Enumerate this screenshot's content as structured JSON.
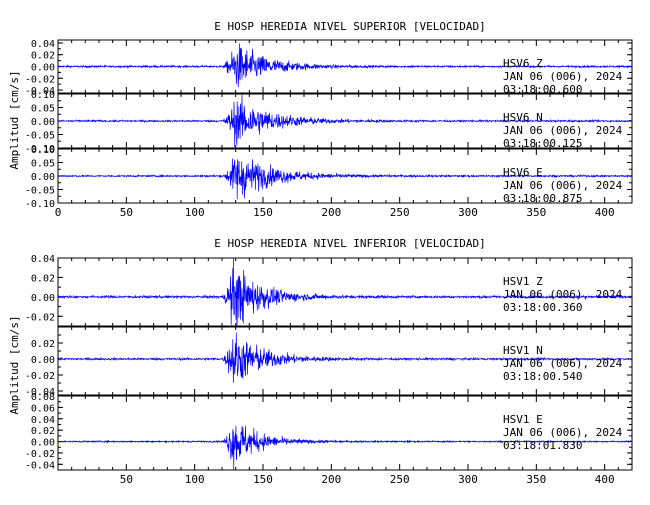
{
  "colors": {
    "trace": "#0000ff",
    "axis": "#000000",
    "background": "#ffffff"
  },
  "chart_data": [
    {
      "type": "line",
      "title": "E HOSP HEREDIA NIVEL SUPERIOR [VELOCIDAD]",
      "ylabel": "Amplitud [cm/s]",
      "xlabel": "",
      "xlim": [
        0,
        420
      ],
      "x_ticks": [
        0,
        50,
        100,
        150,
        200,
        250,
        300,
        350,
        400
      ],
      "shared_x": true,
      "panels": [
        {
          "name": "HSV6 Z",
          "info": [
            "HSV6   Z",
            "JAN 06 (006), 2024",
            "03:18:00.600"
          ],
          "ylim": [
            -0.045,
            0.045
          ],
          "y_ticks": [
            -0.04,
            -0.02,
            0.0,
            0.02,
            0.04
          ],
          "y_tick_labels": [
            "-0.04",
            "-0.02",
            "0.00",
            "0.02",
            "0.04"
          ],
          "signal": {
            "noise_floor": 0.0015,
            "onset_s": 120,
            "peak_s": 130,
            "peak_amplitude": 0.04,
            "decay_end_s": 200
          }
        },
        {
          "name": "HSV6 N",
          "info": [
            "HSV6   N",
            "JAN 06 (006), 2024",
            "03:18:00.125"
          ],
          "ylim": [
            -0.1,
            0.1
          ],
          "y_ticks": [
            -0.1,
            -0.05,
            0.0,
            0.05,
            0.1
          ],
          "y_tick_labels": [
            "-0.10",
            "-0.05",
            "0.00",
            "0.05",
            "0.10"
          ],
          "signal": {
            "noise_floor": 0.003,
            "onset_s": 120,
            "peak_s": 130,
            "peak_amplitude": 0.09,
            "decay_end_s": 210
          }
        },
        {
          "name": "HSV6 E",
          "info": [
            "HSV6   E",
            "JAN 06 (006), 2024",
            "03:18:00.875"
          ],
          "ylim": [
            -0.1,
            0.1
          ],
          "y_ticks": [
            -0.1,
            -0.05,
            0.0,
            0.05,
            0.1
          ],
          "y_tick_labels": [
            "-0.10",
            "-0.05",
            "0.00",
            "0.05",
            "0.10"
          ],
          "signal": {
            "noise_floor": 0.003,
            "onset_s": 120,
            "peak_s": 130,
            "peak_amplitude": 0.09,
            "decay_end_s": 210
          }
        }
      ]
    },
    {
      "type": "line",
      "title": "E HOSP HEREDIA NIVEL INFERIOR [VELOCIDAD]",
      "ylabel": "Amplitud [cm/s]",
      "xlabel": "",
      "xlim": [
        0,
        420
      ],
      "x_ticks": [
        50,
        100,
        150,
        200,
        250,
        300,
        350,
        400
      ],
      "shared_x": true,
      "panels": [
        {
          "name": "HSV1 Z",
          "info": [
            "HSV1   Z",
            "JAN 06 (006), 2024",
            "03:18:00.360"
          ],
          "ylim": [
            -0.03,
            0.04
          ],
          "y_ticks": [
            -0.02,
            0.0,
            0.02,
            0.04
          ],
          "y_tick_labels": [
            "-0.02",
            "0.00",
            "0.02",
            "0.04"
          ],
          "signal": {
            "noise_floor": 0.0012,
            "onset_s": 120,
            "peak_s": 128,
            "peak_amplitude": 0.035,
            "decay_end_s": 190
          }
        },
        {
          "name": "HSV1 N",
          "info": [
            "HSV1   N",
            "JAN 06 (006), 2024",
            "03:18:00.540"
          ],
          "ylim": [
            -0.045,
            0.04
          ],
          "y_ticks": [
            -0.04,
            -0.02,
            0.0,
            0.02
          ],
          "y_tick_labels": [
            "-0.04",
            "-0.02",
            "0.00",
            "0.02"
          ],
          "signal": {
            "noise_floor": 0.0012,
            "onset_s": 120,
            "peak_s": 128,
            "peak_amplitude": 0.035,
            "decay_end_s": 195
          }
        },
        {
          "name": "HSV1 E",
          "info": [
            "HSV1   E",
            "JAN 06 (006), 2024",
            "03:18:01.830"
          ],
          "ylim": [
            -0.05,
            0.08
          ],
          "y_ticks": [
            -0.04,
            -0.02,
            0.0,
            0.02,
            0.04,
            0.06,
            0.08
          ],
          "y_tick_labels": [
            "-0.04",
            "-0.02",
            "0.00",
            "0.02",
            "0.04",
            "0.06",
            "0.08"
          ],
          "signal": {
            "noise_floor": 0.0012,
            "onset_s": 120,
            "peak_s": 128,
            "peak_amplitude": 0.045,
            "decay_end_s": 185
          }
        }
      ]
    }
  ]
}
